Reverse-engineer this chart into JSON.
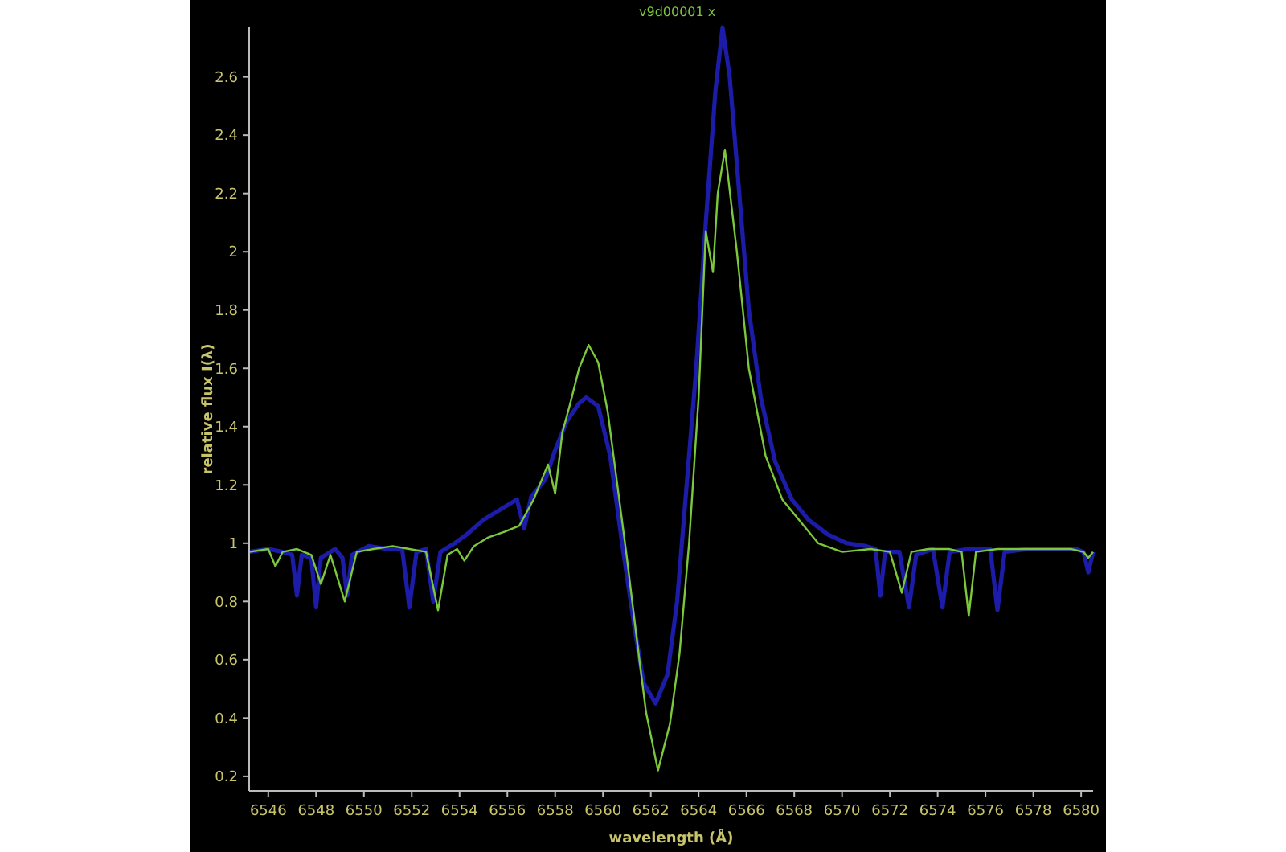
{
  "chart_data": {
    "type": "line",
    "title": "x",
    "xlabel": "wavelength (Å)",
    "ylabel": "relative flux I(λ)",
    "xlim": [
      6545.2,
      6580.5
    ],
    "ylim": [
      0.15,
      2.77
    ],
    "xticks": [
      6546,
      6548,
      6550,
      6552,
      6554,
      6556,
      6558,
      6560,
      6562,
      6564,
      6566,
      6568,
      6570,
      6572,
      6574,
      6576,
      6578,
      6580
    ],
    "yticks": [
      0.2,
      0.4,
      0.6,
      0.8,
      1,
      1.2,
      1.4,
      1.6,
      1.8,
      2,
      2.2,
      2.4,
      2.6
    ],
    "grid": false,
    "legend": false,
    "line_style": "solid",
    "marker": "none",
    "series": [
      {
        "name": null,
        "color": "#1c1ca8",
        "x": [
          6545.2,
          6546.0,
          6546.6,
          6547.0,
          6547.2,
          6547.4,
          6547.8,
          6548.0,
          6548.2,
          6548.8,
          6549.1,
          6549.3,
          6549.5,
          6550.2,
          6551.0,
          6551.6,
          6551.9,
          6552.2,
          6552.6,
          6552.9,
          6553.2,
          6553.8,
          6554.3,
          6555.0,
          6555.8,
          6556.4,
          6556.7,
          6557.0,
          6557.6,
          6558.0,
          6558.5,
          6559.0,
          6559.3,
          6559.8,
          6560.3,
          6560.8,
          6561.3,
          6561.7,
          6562.2,
          6562.7,
          6563.1,
          6563.5,
          6563.9,
          6564.3,
          6564.7,
          6565.0,
          6565.3,
          6565.7,
          6566.1,
          6566.6,
          6567.2,
          6567.9,
          6568.6,
          6569.4,
          6570.2,
          6571.0,
          6571.4,
          6571.6,
          6571.8,
          6572.4,
          6572.8,
          6573.1,
          6573.8,
          6574.2,
          6574.5,
          6575.3,
          6576.2,
          6576.5,
          6576.8,
          6577.8,
          6578.8,
          6579.8,
          6580.1,
          6580.3,
          6580.5
        ],
        "values": [
          0.97,
          0.98,
          0.97,
          0.96,
          0.82,
          0.96,
          0.95,
          0.78,
          0.95,
          0.98,
          0.95,
          0.82,
          0.96,
          0.99,
          0.98,
          0.98,
          0.78,
          0.97,
          0.98,
          0.8,
          0.97,
          1.0,
          1.03,
          1.08,
          1.12,
          1.15,
          1.05,
          1.16,
          1.22,
          1.32,
          1.42,
          1.48,
          1.5,
          1.47,
          1.3,
          1.0,
          0.72,
          0.52,
          0.45,
          0.55,
          0.8,
          1.2,
          1.6,
          2.1,
          2.55,
          2.77,
          2.6,
          2.2,
          1.8,
          1.5,
          1.28,
          1.15,
          1.08,
          1.03,
          1.0,
          0.99,
          0.98,
          0.82,
          0.97,
          0.97,
          0.78,
          0.96,
          0.98,
          0.78,
          0.97,
          0.98,
          0.98,
          0.77,
          0.97,
          0.98,
          0.98,
          0.98,
          0.97,
          0.9,
          0.97
        ]
      },
      {
        "name": "v9d00001",
        "color": "#7cc83c",
        "x": [
          6545.2,
          6546.0,
          6546.3,
          6546.6,
          6547.2,
          6547.8,
          6548.2,
          6548.6,
          6549.2,
          6549.7,
          6550.4,
          6551.2,
          6551.9,
          6552.6,
          6553.1,
          6553.5,
          6553.9,
          6554.2,
          6554.6,
          6555.2,
          6555.9,
          6556.5,
          6557.1,
          6557.7,
          6558.0,
          6558.3,
          6558.6,
          6559.0,
          6559.4,
          6559.8,
          6560.2,
          6560.6,
          6561.0,
          6561.4,
          6561.8,
          6562.3,
          6562.8,
          6563.2,
          6563.6,
          6564.0,
          6564.3,
          6564.6,
          6564.8,
          6565.1,
          6565.6,
          6566.1,
          6566.8,
          6567.5,
          6568.3,
          6569.0,
          6570.0,
          6571.2,
          6572.0,
          6572.5,
          6572.9,
          6573.6,
          6574.5,
          6575.0,
          6575.3,
          6575.6,
          6576.5,
          6577.6,
          6578.7,
          6579.6,
          6580.1,
          6580.3,
          6580.5
        ],
        "values": [
          0.97,
          0.98,
          0.92,
          0.97,
          0.98,
          0.96,
          0.86,
          0.96,
          0.8,
          0.97,
          0.98,
          0.99,
          0.98,
          0.97,
          0.77,
          0.96,
          0.98,
          0.94,
          0.99,
          1.02,
          1.04,
          1.06,
          1.15,
          1.27,
          1.17,
          1.38,
          1.47,
          1.6,
          1.68,
          1.62,
          1.45,
          1.2,
          0.95,
          0.68,
          0.42,
          0.22,
          0.38,
          0.62,
          1.0,
          1.5,
          2.07,
          1.93,
          2.2,
          2.35,
          2.0,
          1.6,
          1.3,
          1.15,
          1.07,
          1.0,
          0.97,
          0.98,
          0.97,
          0.83,
          0.97,
          0.98,
          0.98,
          0.97,
          0.75,
          0.97,
          0.98,
          0.98,
          0.98,
          0.98,
          0.97,
          0.95,
          0.97
        ]
      }
    ]
  }
}
